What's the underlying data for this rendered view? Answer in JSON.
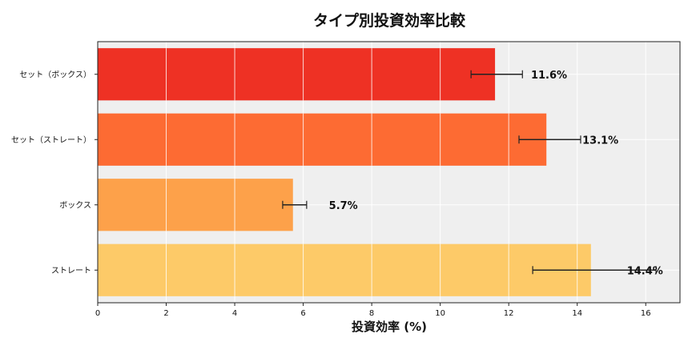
{
  "chart_data": {
    "type": "bar",
    "orientation": "horizontal",
    "title": "タイプ別投資効率比較",
    "xlabel": "投資効率 (%)",
    "ylabel": "",
    "xlim": [
      0,
      17
    ],
    "xticks": [
      "0",
      "2",
      "4",
      "6",
      "8",
      "10",
      "12",
      "14",
      "16"
    ],
    "grid": true,
    "categories": [
      "セット（ボックス）",
      "セット（ストレート）",
      "ボックス",
      "ストレート"
    ],
    "values": [
      11.6,
      13.1,
      5.7,
      14.4
    ],
    "data_labels": [
      "11.6%",
      "13.1%",
      "5.7%",
      "14.4%"
    ],
    "error_low": [
      10.9,
      12.3,
      5.4,
      12.7
    ],
    "error_high": [
      12.4,
      14.1,
      6.1,
      16.3
    ],
    "colors": [
      "#ee3124",
      "#fd6b33",
      "#fda14a",
      "#fdca68"
    ],
    "background": "#efefef"
  }
}
